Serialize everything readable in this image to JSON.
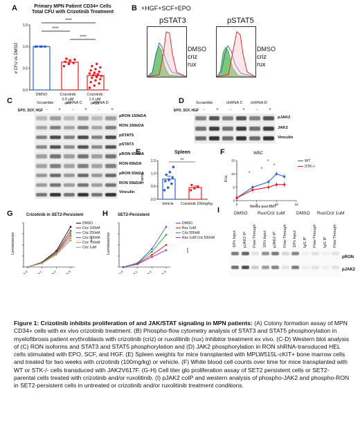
{
  "panels": {
    "A": {
      "label": "A",
      "title_line1": "Primary MPN Patient CD34+ Cells",
      "title_line2": "Total CFU with Crizotinib Treatment",
      "ylabel": "# CFU vs DMSO",
      "sig": [
        "****",
        "****",
        "****"
      ],
      "groups": [
        {
          "name": "DMSO",
          "sub": "",
          "n": ""
        },
        {
          "name": "Crizotinib",
          "sub": "0.5 μM",
          "n": "n=7"
        },
        {
          "name": "Crizotinib",
          "sub": "1.0 μM",
          "n": "n=19"
        }
      ],
      "yticks": [
        "0.0",
        "0.5",
        "1.0",
        "1.5"
      ]
    },
    "B": {
      "label": "B",
      "condition": "+HGF+SCF+EPO",
      "plot1_title": "pSTAT3",
      "plot2_title": "pSTAT5",
      "legend": [
        "DMSO",
        "criz",
        "rux"
      ]
    },
    "C": {
      "label": "C",
      "groups": [
        "Scramble",
        "shRNA C",
        "shRNA D"
      ],
      "treatment": "EPO, SCF, HGF",
      "lanes": [
        "-",
        "+",
        "-",
        "+",
        "-",
        "+"
      ],
      "rows": [
        "pRON 150kDA",
        "RON 150kDA",
        "pSTAT5",
        "pSTAT3",
        "pRON 65kDA",
        "RON 65kDA",
        "pRON 55kDA",
        "RON 55kDA",
        "Vinculin"
      ]
    },
    "D": {
      "label": "D",
      "groups": [
        "Scramble",
        "shRNA C",
        "shRNA D"
      ],
      "treatment": "EPO, SCF, HGF",
      "lanes": [
        "-",
        "+",
        "-",
        "+",
        "-",
        "+"
      ],
      "rows": [
        "pJAK2",
        "JAK2",
        "Vinculin"
      ]
    },
    "E": {
      "label": "E",
      "title": "Spleen",
      "ylabel": "grams",
      "sig": "**",
      "categories": [
        "Vehicle",
        "Crizotinib 100mg/kg"
      ],
      "yticks": [
        "0.0",
        "0.5",
        "1.0",
        "1.5"
      ]
    },
    "F": {
      "label": "F",
      "title": "WBC",
      "ylabel": "K/uL",
      "xlabel": "Weeks post-BMT",
      "legend": [
        "WT",
        "STK-/-"
      ],
      "xticks": [
        "0",
        "5",
        "10",
        "15"
      ],
      "yticks": [
        "0",
        "5",
        "10",
        "15"
      ],
      "sig": [
        "*",
        "*",
        "*",
        "*"
      ]
    },
    "G": {
      "label": "G",
      "title": "Crizotinib in SET2-Persistent",
      "ylabel": "Luminescence",
      "xticks": [
        "Day 0",
        "Day 1",
        "Day 2",
        "Day 3"
      ],
      "legend": [
        "DMSO",
        "Criz 100nM",
        "Criz 250nM",
        "Criz 500nM",
        "Criz 750nM",
        "Criz 1uM"
      ],
      "sig": "****"
    },
    "H": {
      "label": "H",
      "title": "SET2-Persistent",
      "ylabel": "Luminescence",
      "xticks": [
        "Day 0",
        "Day 1",
        "Day 2",
        "Day 3"
      ],
      "legend": [
        "DMSO",
        "Rux 1uM",
        "Criz 500nM",
        "Rux 1uM Criz 500nM"
      ],
      "sig": "****"
    },
    "I": {
      "label": "I",
      "group_headers": [
        "DMSO",
        "Rux/Criz 1uM",
        "DMSO",
        "Rux/Criz 1uM"
      ],
      "lanes": [
        "10% Input",
        "pJAK2 IP",
        "Flow Through",
        "10% Input",
        "pJAK2 IP",
        "Flow Through",
        "10% Input",
        "IgG IP",
        "Flow Through",
        "IgG IP",
        "Flow Through"
      ],
      "rows": [
        "pRON",
        "pJAK2"
      ]
    }
  },
  "caption": {
    "lead": "Figure 1: Crizotinib inhibits proliferation of and JAK/STAT signaling in MPN patients:",
    "body": " (A) Colony formation assay of MPN CD34+ cells with ex vivo crizotinib treatment. (B) Phospho-flow cytometry analysis of STAT3 and STAT5 phosphorylation in myelofibrosis patient erythroblasts with crizotinib (criz) or ruxolitinib (rux) inhibitor treatment ex vivo. (C-D) Western blot analysis of (C) RON isoforms and STAT3 and STAT5 phosphorylation and (D) JAK2 phosphorylation in RON shRNA-transduced HEL cells stimulated with EPO, SCF, and HGF. (E) Spleen weights for mice transplanted with MPLW515L-cKIT+ bone marrow cells and treated for two weeks with crizotinib (100mg/kg) or vehicle. (F) White blood cell counts over time for mice transplanted with WT or STK-/- cells transduced with JAK2V617F. (G-H) Cell titer glo proliferation assay of SET2 persistent cells or SET2-parental cells treated with crizotinib and/or ruxolitinib. (I) pJAK2 coIP and western analysis of phospho-JAK2 and phospho-RON in SET2-persistent cells in untreated or crizotinib and/or ruxolitinib treatment conditions."
  },
  "chart_data": [
    {
      "panel": "A",
      "type": "bar",
      "categories": [
        "DMSO",
        "Crizotinib 0.5 μM",
        "Crizotinib 1.0 μM"
      ],
      "values": [
        1.0,
        0.64,
        0.33
      ],
      "errors": [
        0.01,
        0.05,
        0.04
      ],
      "ylim": [
        0,
        1.5
      ],
      "ylabel": "# CFU vs DMSO",
      "colors": [
        "#2e5ec9",
        "#e8141c",
        "#e8141c"
      ],
      "points": [
        [
          1.0,
          1.0,
          1.0,
          1.0,
          1.0
        ],
        [
          0.55,
          0.6,
          0.62,
          0.65,
          0.68,
          0.7,
          0.72
        ],
        [
          0.05,
          0.1,
          0.15,
          0.18,
          0.22,
          0.25,
          0.28,
          0.3,
          0.32,
          0.34,
          0.36,
          0.38,
          0.4,
          0.42,
          0.45,
          0.48,
          0.52,
          0.55,
          0.6
        ]
      ]
    },
    {
      "panel": "E",
      "type": "bar",
      "categories": [
        "Vehicle",
        "Crizotinib 100mg/kg"
      ],
      "values": [
        0.78,
        0.45
      ],
      "errors": [
        0.12,
        0.06
      ],
      "ylim": [
        0,
        1.5
      ],
      "ylabel": "grams",
      "colors": [
        "#2e5ec9",
        "#e8141c"
      ],
      "points": [
        [
          0.35,
          0.45,
          0.6,
          0.7,
          0.75,
          0.85,
          0.95,
          1.05,
          1.25
        ],
        [
          0.35,
          0.42,
          0.5,
          0.55
        ]
      ]
    },
    {
      "panel": "F",
      "type": "line",
      "x": [
        0,
        4,
        8,
        10,
        12
      ],
      "series": [
        {
          "name": "WT",
          "values": [
            1,
            5,
            7,
            10,
            9
          ],
          "color": "#2e5ec9"
        },
        {
          "name": "STK-/-",
          "values": [
            1,
            4,
            5,
            6,
            6
          ],
          "color": "#e8141c"
        }
      ],
      "xlim": [
        0,
        15
      ],
      "ylim": [
        0,
        15
      ],
      "xlabel": "Weeks post-BMT",
      "ylabel": "K/uL"
    },
    {
      "panel": "G",
      "type": "line",
      "x": [
        "Day 0",
        "Day 1",
        "Day 2",
        "Day 3"
      ],
      "series": [
        {
          "name": "DMSO",
          "values": [
            0.0,
            0.12,
            0.4,
            1.0
          ],
          "color": "#000000"
        },
        {
          "name": "Criz 100nM",
          "values": [
            0.0,
            0.11,
            0.37,
            0.9
          ],
          "color": "#e8141c"
        },
        {
          "name": "Criz 250nM",
          "values": [
            0.0,
            0.11,
            0.36,
            0.84
          ],
          "color": "#2e9e3c"
        },
        {
          "name": "Criz 500nM",
          "values": [
            0.0,
            0.1,
            0.34,
            0.78
          ],
          "color": "#9b2fc9"
        },
        {
          "name": "Criz 750nM",
          "values": [
            0.0,
            0.1,
            0.33,
            0.72
          ],
          "color": "#f08c1a"
        },
        {
          "name": "Criz 1uM",
          "values": [
            0.0,
            0.09,
            0.31,
            0.66
          ],
          "color": "#999999"
        }
      ],
      "ylim": [
        0,
        1.1
      ]
    },
    {
      "panel": "H",
      "type": "line",
      "x": [
        "Day 0",
        "Day 1",
        "Day 2",
        "Day 3"
      ],
      "series": [
        {
          "name": "DMSO",
          "values": [
            0.0,
            0.1,
            0.45,
            1.0
          ],
          "color": "#2e5ec9"
        },
        {
          "name": "Rux 1uM",
          "values": [
            0.0,
            0.08,
            0.3,
            0.55
          ],
          "color": "#e8141c"
        },
        {
          "name": "Criz 500nM",
          "values": [
            0.0,
            0.09,
            0.38,
            0.8
          ],
          "color": "#2e9e3c"
        },
        {
          "name": "Rux 1uM Criz 500nM",
          "values": [
            0.0,
            0.07,
            0.25,
            0.42
          ],
          "color": "#9b2fc9"
        }
      ],
      "ylim": [
        0,
        1.1
      ]
    }
  ]
}
